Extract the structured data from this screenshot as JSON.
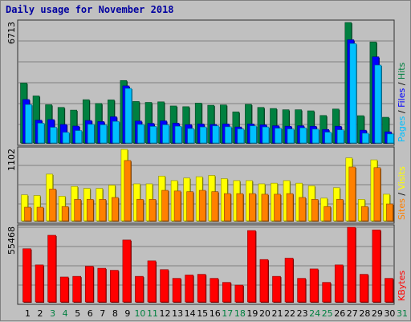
{
  "title": "Daily usage for November 2018",
  "colors": {
    "hits": "#008040",
    "files": "#0000ff",
    "pages": "#00c0ff",
    "visits": "#ffff00",
    "sites": "#ff8000",
    "kbytes": "#ff0000",
    "weekend_label": "#008040",
    "weekday_label": "#000000",
    "title": "#0000a0"
  },
  "chart_data": [
    {
      "type": "bar",
      "panel": "hits-files-pages",
      "max_label": "6713",
      "ylim": [
        0,
        6713
      ],
      "categories": [
        "1",
        "2",
        "3",
        "4",
        "5",
        "6",
        "7",
        "8",
        "9",
        "10",
        "11",
        "12",
        "13",
        "14",
        "15",
        "16",
        "17",
        "18",
        "19",
        "20",
        "21",
        "22",
        "23",
        "24",
        "25",
        "26",
        "27",
        "28",
        "29",
        "30",
        "31"
      ],
      "weekend": [
        3,
        4,
        10,
        11,
        17,
        18,
        24,
        25,
        31
      ],
      "legend": [
        "Pages",
        "Files",
        "Hits"
      ],
      "series": [
        {
          "name": "Hits",
          "values": [
            3340,
            2620,
            2130,
            1980,
            1830,
            2410,
            2200,
            2400,
            3480,
            2310,
            2260,
            2290,
            2060,
            2020,
            2220,
            2100,
            2120,
            1730,
            2150,
            1980,
            1920,
            1850,
            1850,
            1790,
            1530,
            1890,
            6713,
            1520,
            5630,
            1430,
            0
          ]
        },
        {
          "name": "Files",
          "values": [
            2420,
            1270,
            1300,
            1030,
            940,
            1250,
            1190,
            1460,
            3180,
            1220,
            1090,
            1230,
            1100,
            1020,
            1060,
            1030,
            1060,
            890,
            1060,
            1010,
            960,
            930,
            960,
            930,
            750,
            930,
            5750,
            710,
            4800,
            620,
            0
          ]
        },
        {
          "name": "Pages",
          "values": [
            2140,
            1100,
            870,
            590,
            690,
            1040,
            1010,
            1200,
            3040,
            1030,
            920,
            1010,
            930,
            800,
            890,
            950,
            900,
            780,
            950,
            890,
            820,
            780,
            840,
            770,
            600,
            730,
            5540,
            540,
            4340,
            500,
            0
          ]
        }
      ]
    },
    {
      "type": "bar",
      "panel": "visits-sites",
      "max_label": "1102",
      "ylim": [
        0,
        1102
      ],
      "categories": [
        "1",
        "2",
        "3",
        "4",
        "5",
        "6",
        "7",
        "8",
        "9",
        "10",
        "11",
        "12",
        "13",
        "14",
        "15",
        "16",
        "17",
        "18",
        "19",
        "20",
        "21",
        "22",
        "23",
        "24",
        "25",
        "26",
        "27",
        "28",
        "29",
        "30",
        "31"
      ],
      "legend": [
        "Sites",
        "Visits"
      ],
      "series": [
        {
          "name": "Visits",
          "values": [
            400,
            390,
            720,
            380,
            530,
            500,
            500,
            550,
            1102,
            570,
            570,
            690,
            620,
            660,
            680,
            700,
            650,
            620,
            620,
            570,
            580,
            620,
            580,
            540,
            350,
            510,
            970,
            330,
            940,
            410,
            0
          ]
        },
        {
          "name": "Sites",
          "values": [
            210,
            210,
            490,
            220,
            330,
            330,
            330,
            360,
            930,
            330,
            330,
            470,
            460,
            450,
            470,
            450,
            420,
            420,
            420,
            410,
            410,
            420,
            360,
            330,
            220,
            330,
            830,
            220,
            820,
            260,
            0
          ]
        }
      ]
    },
    {
      "type": "bar",
      "panel": "kbytes",
      "max_label": "55468",
      "ylim": [
        0,
        55468
      ],
      "categories": [
        "1",
        "2",
        "3",
        "4",
        "5",
        "6",
        "7",
        "8",
        "9",
        "10",
        "11",
        "12",
        "13",
        "14",
        "15",
        "16",
        "17",
        "18",
        "19",
        "20",
        "21",
        "22",
        "23",
        "24",
        "25",
        "26",
        "27",
        "28",
        "29",
        "30",
        "31"
      ],
      "legend": [
        "KBytes"
      ],
      "series": [
        {
          "name": "KBytes",
          "values": [
            39500,
            27500,
            49500,
            18500,
            19000,
            26500,
            25000,
            23500,
            46000,
            19000,
            30500,
            24000,
            17500,
            20000,
            20500,
            17500,
            14500,
            12500,
            53000,
            31500,
            19000,
            32500,
            17500,
            24500,
            14500,
            27500,
            55468,
            20500,
            53500,
            17500,
            0
          ]
        }
      ]
    }
  ]
}
